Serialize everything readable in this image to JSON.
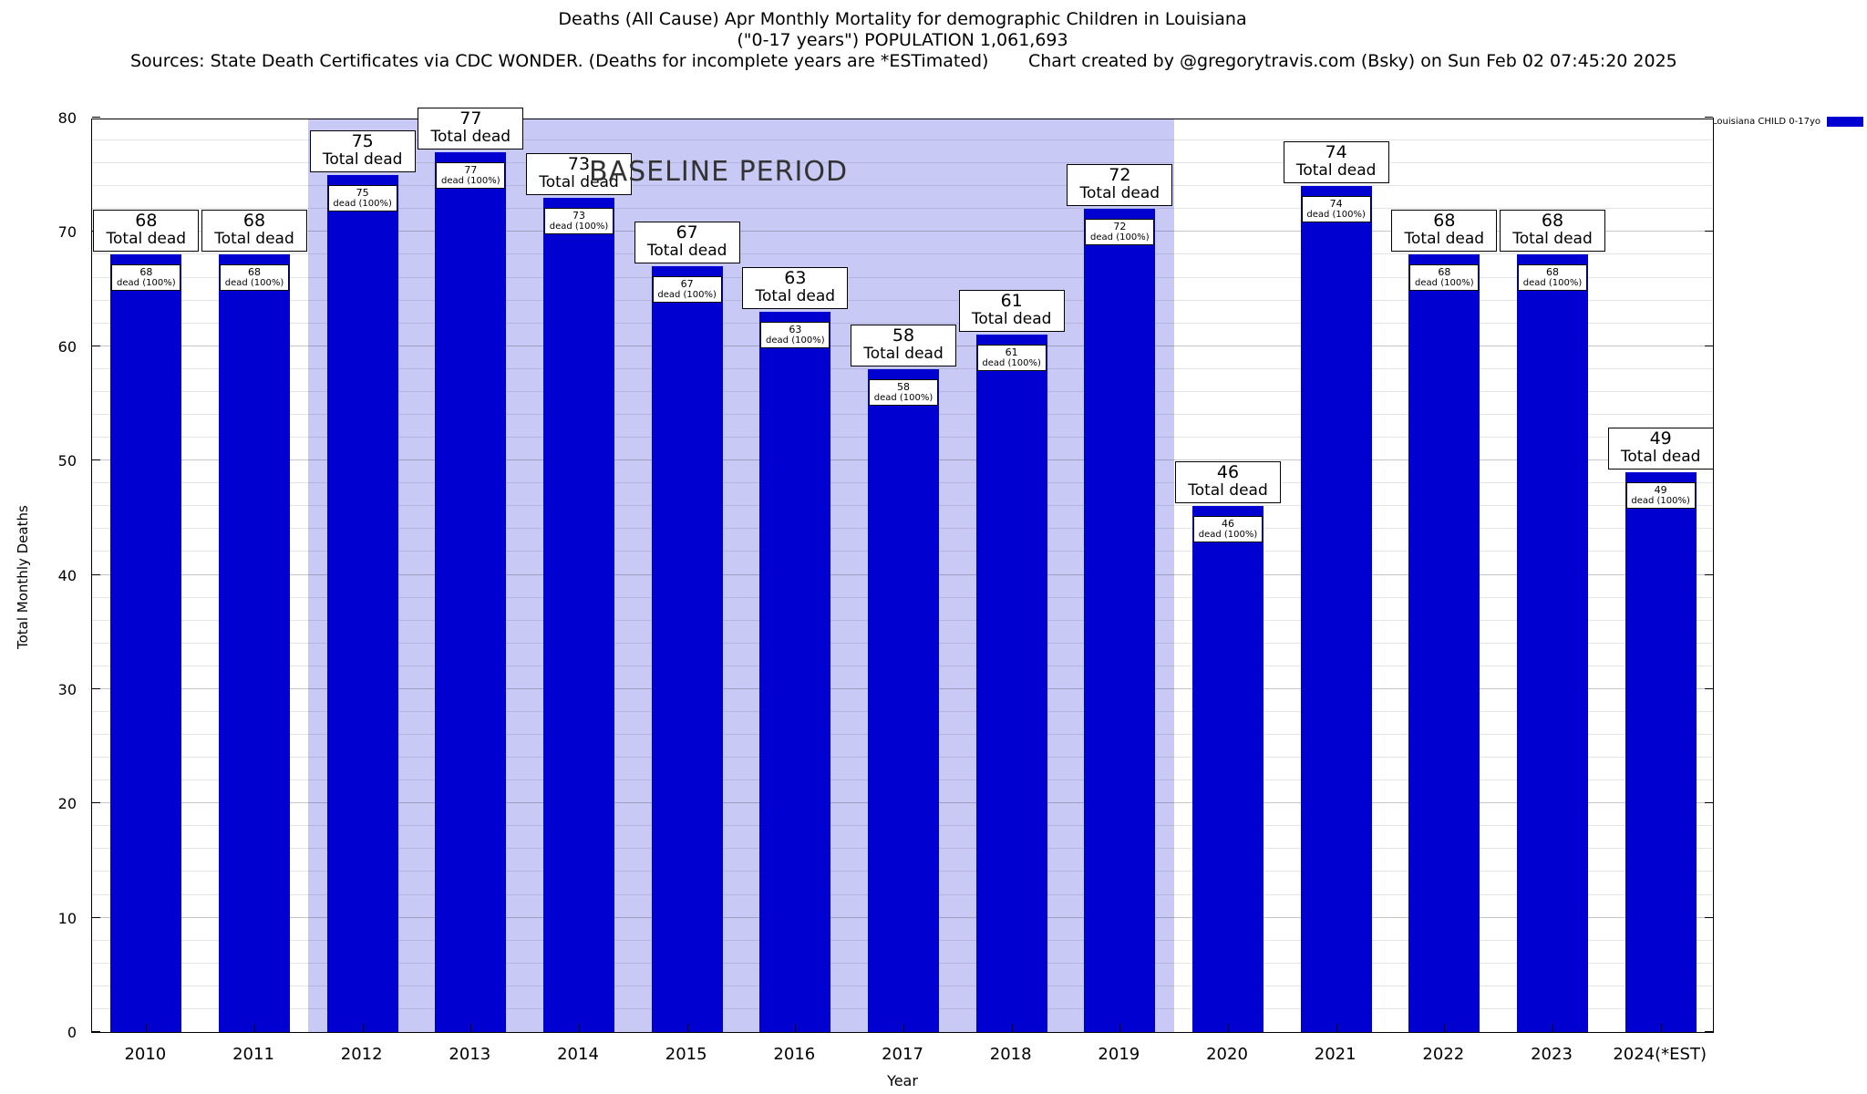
{
  "header": {
    "title_line1": "Deaths (All Cause) Apr Monthly Mortality for demographic Children in Louisiana",
    "title_line2": "(\"0-17 years\") POPULATION 1,061,693",
    "sources": "Sources: State Death Certificates via CDC WONDER. (Deaths for incomplete years are *ESTimated)",
    "credit": "Chart created by @gregorytravis.com (Bsky) on Sun Feb 02 07:45:20 2025"
  },
  "chart_data": {
    "type": "bar",
    "title": "Deaths (All Cause) Apr Monthly Mortality for demographic Children in Louisiana (\"0-17 years\") POPULATION 1,061,693",
    "categories": [
      "2010",
      "2011",
      "2012",
      "2013",
      "2014",
      "2015",
      "2016",
      "2017",
      "2018",
      "2019",
      "2020",
      "2021",
      "2022",
      "2023",
      "2024(*EST)"
    ],
    "series": [
      {
        "name": "Louisiana CHILD 0-17yo",
        "values": [
          68,
          68,
          75,
          77,
          73,
          67,
          63,
          58,
          61,
          72,
          46,
          74,
          68,
          68,
          49
        ]
      }
    ],
    "bar_labels": {
      "outer_suffix": "Total dead",
      "inner_suffix": "dead (100%)"
    },
    "xlabel": "Year",
    "ylabel": "Total Monthly Deaths",
    "ylim": [
      0,
      80
    ],
    "ytick_interval": 10,
    "minor_grid_interval": 2,
    "grid": true,
    "bar_color": "#0000d0",
    "legend": {
      "label": "Louisiana CHILD 0-17yo",
      "position": "top-right-outside"
    },
    "baseline": {
      "label": "BASELINE PERIOD",
      "start_category": "2012",
      "end_category": "2019",
      "color": "#c9c9f6"
    }
  }
}
